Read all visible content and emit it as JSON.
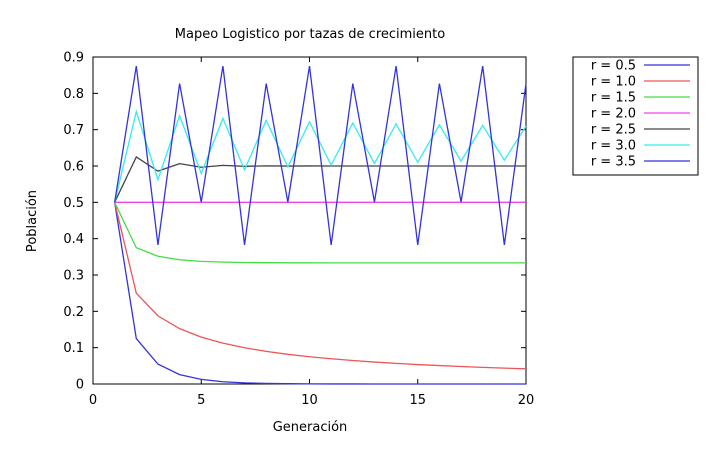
{
  "chart_data": {
    "type": "line",
    "title": "Mapeo Logistico por tazas de crecimiento",
    "xlabel": "Generación",
    "ylabel": "Población",
    "xlim": [
      0,
      20
    ],
    "ylim": [
      0,
      0.9
    ],
    "xticks": [
      "0",
      "5",
      "10",
      "15",
      "20"
    ],
    "yticks": [
      "0",
      "0.1",
      "0.2",
      "0.3",
      "0.4",
      "0.5",
      "0.6",
      "0.7",
      "0.8",
      "0.9"
    ],
    "grid": false,
    "legend_position": "top-right",
    "series": [
      {
        "name": "r = 0.5",
        "color": "#3333dd",
        "x": [
          1,
          2,
          3,
          4,
          5,
          6,
          7,
          8,
          9,
          10,
          11,
          12,
          13,
          14,
          15,
          16,
          17,
          18,
          19,
          20
        ],
        "values": [
          0.5,
          0.125,
          0.0547,
          0.0259,
          0.0126,
          0.0062,
          0.0031,
          0.0015,
          0.0008,
          0.0004,
          0.0002,
          0.0001,
          0,
          0,
          0,
          0,
          0,
          0,
          0,
          0
        ]
      },
      {
        "name": "r = 1.0",
        "color": "#ee5555",
        "x": [
          1,
          2,
          3,
          4,
          5,
          6,
          7,
          8,
          9,
          10,
          11,
          12,
          13,
          14,
          15,
          16,
          17,
          18,
          19,
          20
        ],
        "values": [
          0.5,
          0.25,
          0.1875,
          0.1523,
          0.1291,
          0.1124,
          0.0998,
          0.0898,
          0.0817,
          0.075,
          0.0694,
          0.0646,
          0.0604,
          0.0567,
          0.0535,
          0.0507,
          0.0481,
          0.0458,
          0.0437,
          0.0418
        ]
      },
      {
        "name": "r = 1.5",
        "color": "#44dd44",
        "x": [
          1,
          2,
          3,
          4,
          5,
          6,
          7,
          8,
          9,
          10,
          11,
          12,
          13,
          14,
          15,
          16,
          17,
          18,
          19,
          20
        ],
        "values": [
          0.5,
          0.375,
          0.3516,
          0.3419,
          0.3375,
          0.3354,
          0.3344,
          0.3339,
          0.3336,
          0.3335,
          0.3334,
          0.3334,
          0.3334,
          0.3333,
          0.3333,
          0.3333,
          0.3333,
          0.3333,
          0.3333,
          0.3333
        ]
      },
      {
        "name": "r = 2.0",
        "color": "#ee44ee",
        "x": [
          1,
          2,
          3,
          4,
          5,
          6,
          7,
          8,
          9,
          10,
          11,
          12,
          13,
          14,
          15,
          16,
          17,
          18,
          19,
          20
        ],
        "values": [
          0.5,
          0.5,
          0.5,
          0.5,
          0.5,
          0.5,
          0.5,
          0.5,
          0.5,
          0.5,
          0.5,
          0.5,
          0.5,
          0.5,
          0.5,
          0.5,
          0.5,
          0.5,
          0.5,
          0.5
        ]
      },
      {
        "name": "r = 2.5",
        "color": "#444444",
        "x": [
          1,
          2,
          3,
          4,
          5,
          6,
          7,
          8,
          9,
          10,
          11,
          12,
          13,
          14,
          15,
          16,
          17,
          18,
          19,
          20
        ],
        "values": [
          0.5,
          0.625,
          0.5859,
          0.6065,
          0.5966,
          0.6017,
          0.5992,
          0.6004,
          0.5998,
          0.6001,
          0.6,
          0.6,
          0.6,
          0.6,
          0.6,
          0.6,
          0.6,
          0.6,
          0.6,
          0.6
        ]
      },
      {
        "name": "r = 3.0",
        "color": "#33eeee",
        "x": [
          1,
          2,
          3,
          4,
          5,
          6,
          7,
          8,
          9,
          10,
          11,
          12,
          13,
          14,
          15,
          16,
          17,
          18,
          19,
          20
        ],
        "values": [
          0.5,
          0.75,
          0.5625,
          0.7383,
          0.5797,
          0.731,
          0.5898,
          0.7257,
          0.5975,
          0.7216,
          0.6027,
          0.7183,
          0.607,
          0.7157,
          0.6104,
          0.7134,
          0.6134,
          0.7114,
          0.6159,
          0.7097
        ]
      },
      {
        "name": "r = 3.5",
        "color": "#3333dd",
        "x": [
          1,
          2,
          3,
          4,
          5,
          6,
          7,
          8,
          9,
          10,
          11,
          12,
          13,
          14,
          15,
          16,
          17,
          18,
          19,
          20
        ],
        "values": [
          0.5,
          0.875,
          0.3828,
          0.8269,
          0.5009,
          0.875,
          0.3828,
          0.8269,
          0.5009,
          0.875,
          0.3828,
          0.8269,
          0.5009,
          0.875,
          0.3828,
          0.8269,
          0.5009,
          0.875,
          0.3828,
          0.8269
        ]
      }
    ]
  }
}
